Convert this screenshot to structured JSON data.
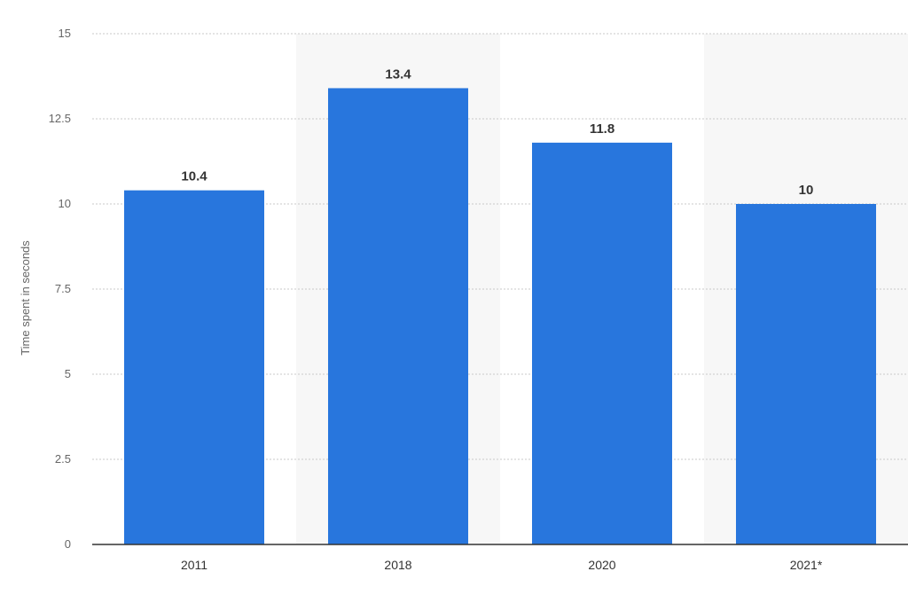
{
  "chart_data": {
    "type": "bar",
    "categories": [
      "2011",
      "2018",
      "2020",
      "2021*"
    ],
    "values": [
      10.4,
      13.4,
      11.8,
      10
    ],
    "value_labels": [
      "10.4",
      "13.4",
      "11.8",
      "10"
    ],
    "title": "",
    "xlabel": "",
    "ylabel": "Time spent in seconds",
    "ylim": [
      0,
      15
    ],
    "yticks": [
      0,
      2.5,
      5,
      7.5,
      10,
      12.5,
      15
    ],
    "ytick_labels": [
      "0",
      "2.5",
      "5",
      "7.5",
      "10",
      "12.5",
      "15"
    ],
    "grid": true,
    "grid_style": "dotted",
    "legend": "none",
    "bar_color": "#2876dd",
    "alternating_band_color": "#f7f7f7",
    "axis_color": "#333333",
    "grid_color": "#c8c8c8"
  }
}
